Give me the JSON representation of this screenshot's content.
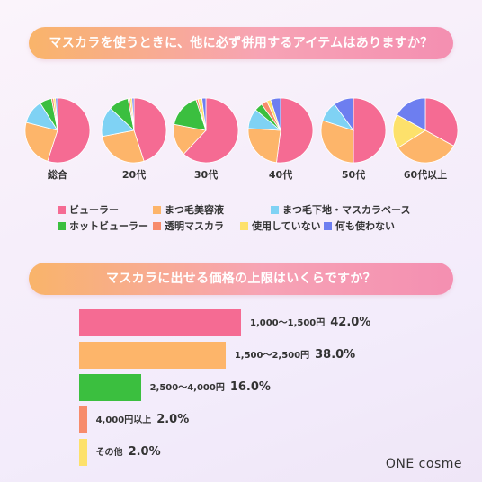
{
  "questions": {
    "q1": "マスカラを使うときに、他に必ず併用するアイテムはありますか？",
    "q2": "マスカラに出せる価格の上限はいくらですか？"
  },
  "colors": {
    "pink": "#f56b93",
    "orange": "#fdb56a",
    "lightblue": "#7fd2f4",
    "green": "#3bbf3f",
    "salmon": "#f78b6b",
    "yellow": "#fde16b",
    "blue": "#6d7ef0"
  },
  "chart_data": [
    {
      "type": "pie",
      "categories": [
        "ビューラー",
        "まつ毛美容液",
        "まつ毛下地・マスカラベース",
        "ホットビューラー",
        "透明マスカラ",
        "使用していない",
        "何も使わない"
      ],
      "series": [
        {
          "name": "総合",
          "values": [
            55,
            24,
            12,
            6,
            1,
            1,
            1
          ]
        },
        {
          "name": "20代",
          "values": [
            45,
            27,
            15,
            10,
            1,
            1,
            1
          ]
        },
        {
          "name": "30代",
          "values": [
            62,
            16,
            0,
            17,
            1,
            2,
            2
          ]
        },
        {
          "name": "40代",
          "values": [
            52,
            24,
            10,
            4,
            3,
            2,
            5
          ]
        },
        {
          "name": "50代",
          "values": [
            50,
            30,
            10,
            0,
            0,
            0,
            10
          ]
        },
        {
          "name": "60代以上",
          "values": [
            33,
            33,
            0,
            0,
            0,
            17,
            17
          ]
        }
      ]
    },
    {
      "type": "bar",
      "categories": [
        "1,000〜1,500円",
        "1,500〜2,500円",
        "2,500〜4,000円",
        "4,000円以上",
        "その他"
      ],
      "values": [
        42.0,
        38.0,
        16.0,
        2.0,
        2.0
      ],
      "value_labels": [
        "42.0%",
        "38.0%",
        "16.0%",
        "2.0%",
        "2.0%"
      ],
      "xlim": [
        0,
        100
      ],
      "bar_colors": [
        "pink",
        "orange",
        "green",
        "salmon",
        "yellow"
      ]
    }
  ],
  "logo": "ONE cosme"
}
